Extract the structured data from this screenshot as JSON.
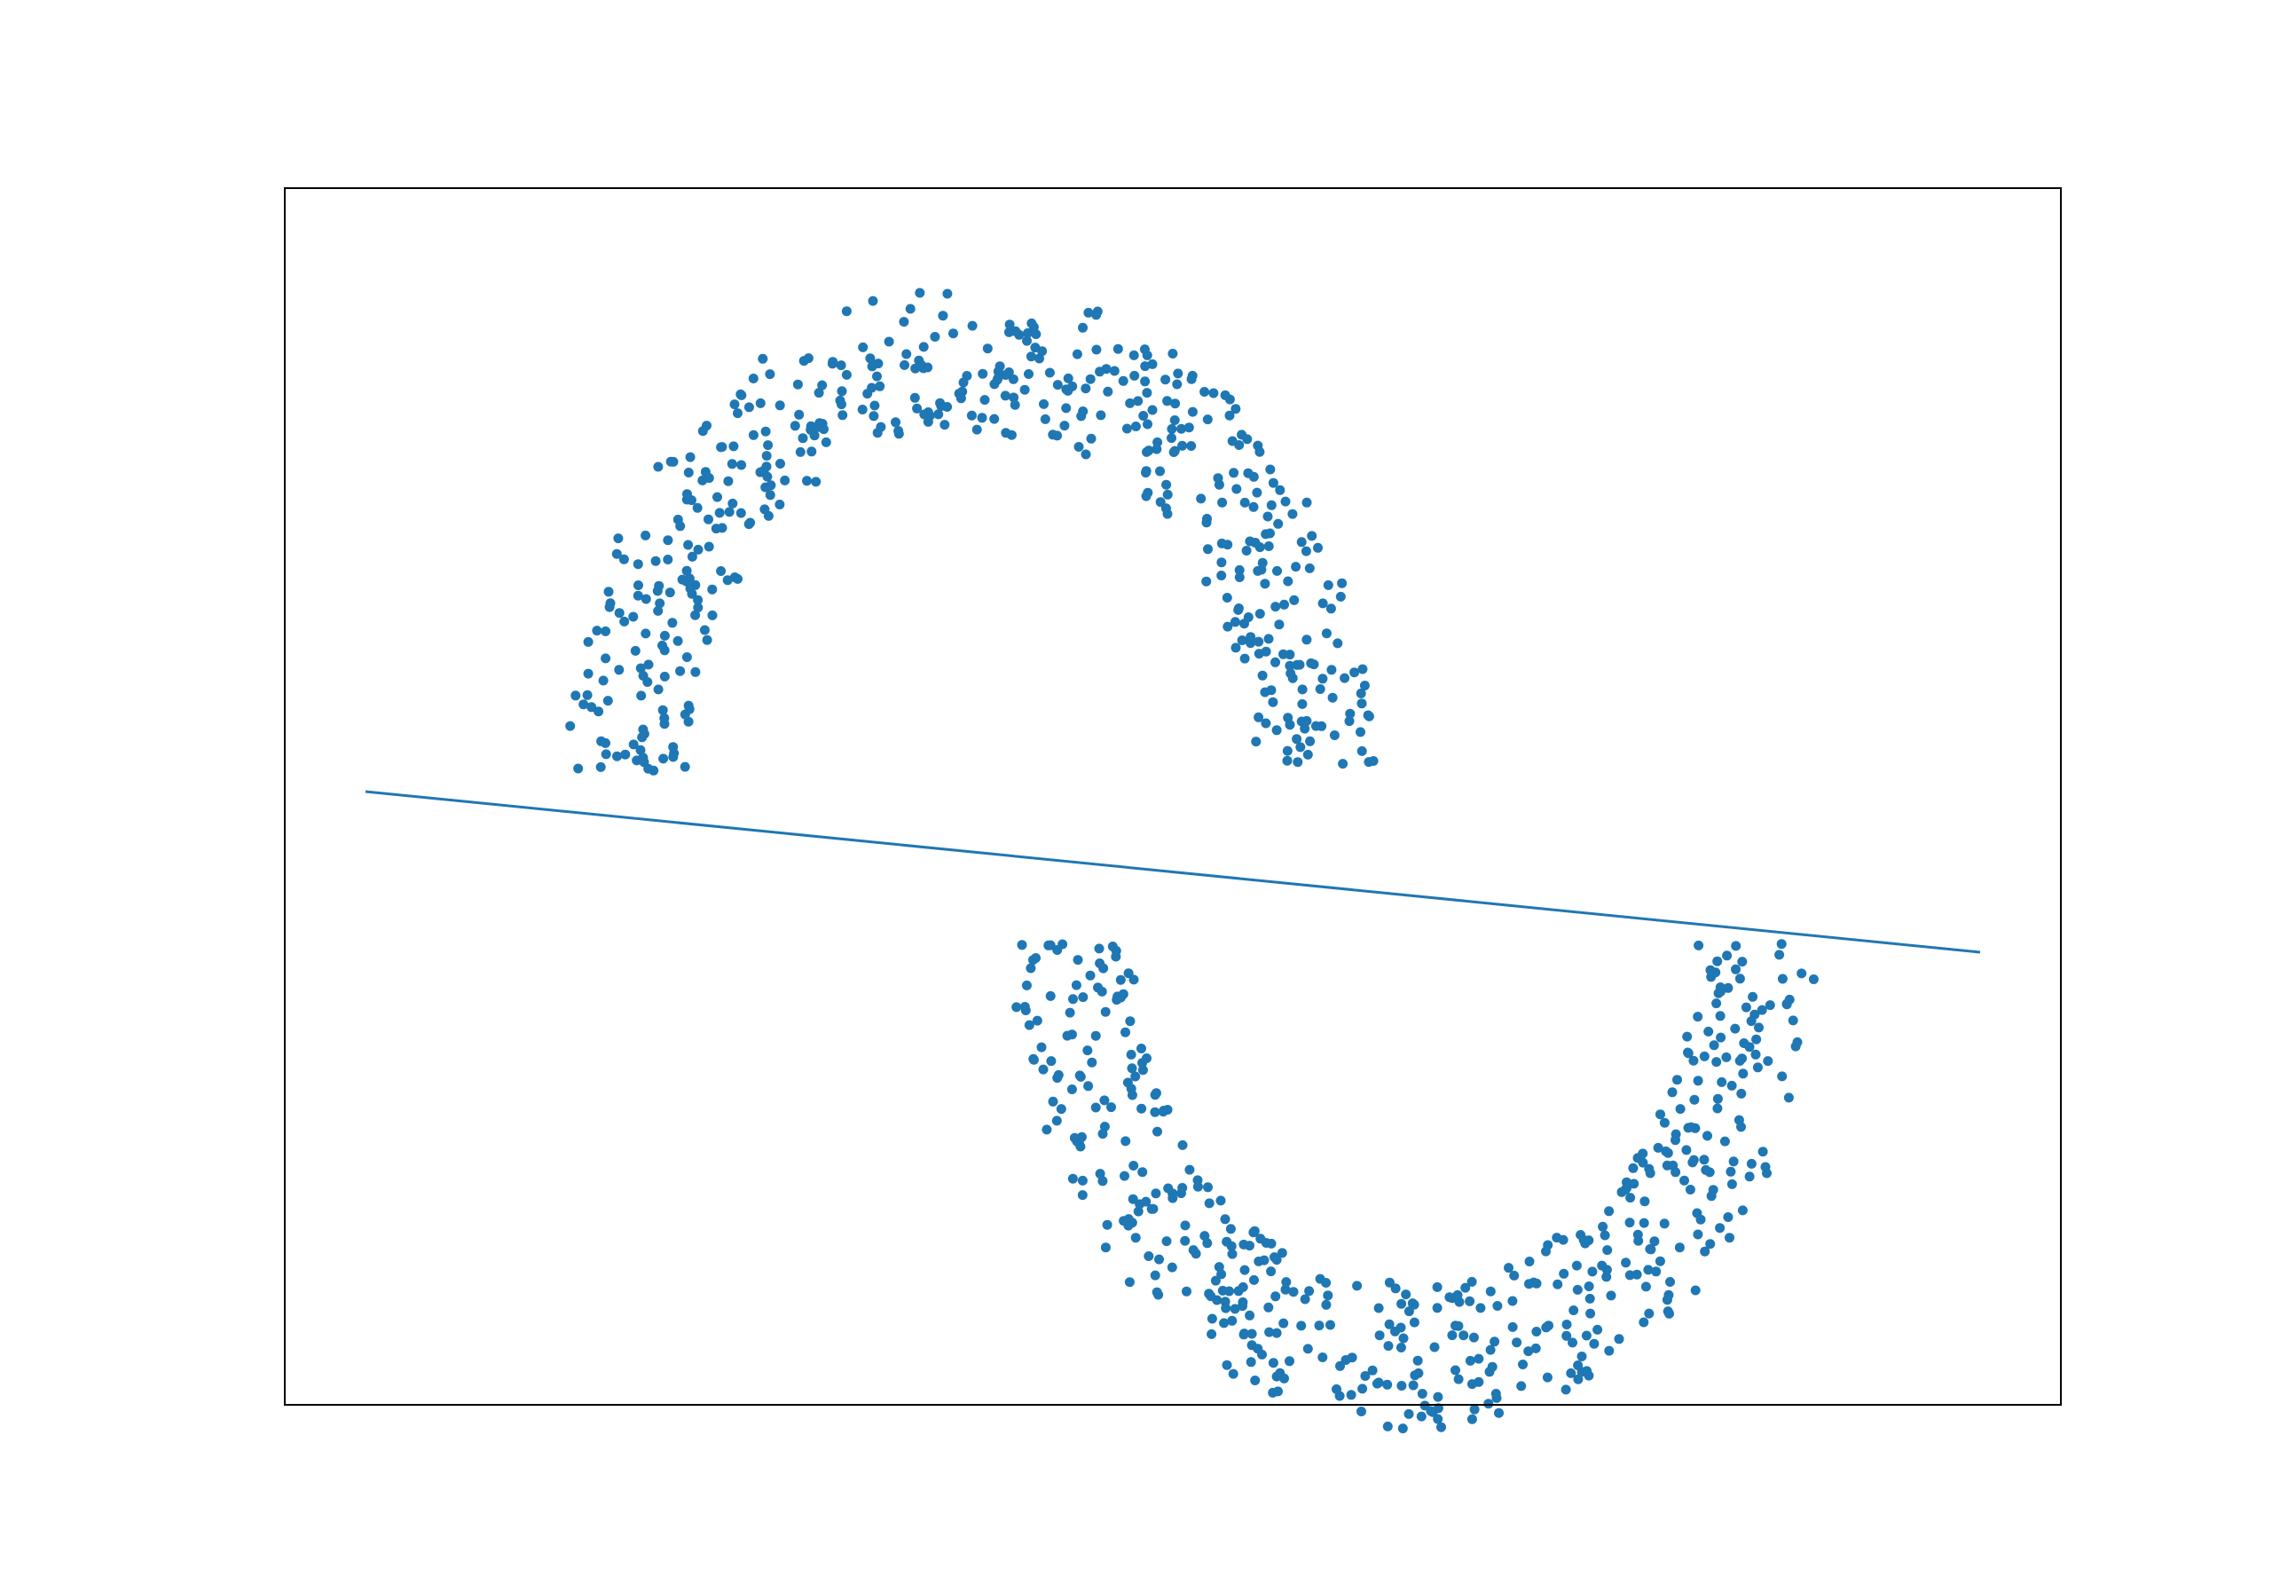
{
  "chart_data": {
    "type": "scatter",
    "title": "",
    "xlabel": "",
    "ylabel": "",
    "xlim": [
      -2.2,
      2.2
    ],
    "ylim": [
      -1.3,
      1.2
    ],
    "grid": false,
    "ticks_visible": false,
    "colors": {
      "points": "#1f77b4",
      "line": "#1f77b4",
      "axes_frame": "#000000",
      "background": "#ffffff"
    },
    "series": [
      {
        "kind": "points",
        "shape": "upper moon (half ring)",
        "center": [
          -0.5,
          0.0
        ],
        "radius_range": [
          0.7,
          1.0
        ],
        "angle_range_deg": [
          0,
          180
        ],
        "count": 500
      },
      {
        "kind": "points",
        "shape": "lower moon (half ring)",
        "center": [
          0.6,
          -0.35
        ],
        "radius_range": [
          0.7,
          1.0
        ],
        "angle_range_deg": [
          180,
          360
        ],
        "count": 500
      },
      {
        "kind": "line",
        "x": [
          -2.0,
          2.0
        ],
        "y": [
          -0.04,
          -0.37
        ]
      }
    ]
  }
}
